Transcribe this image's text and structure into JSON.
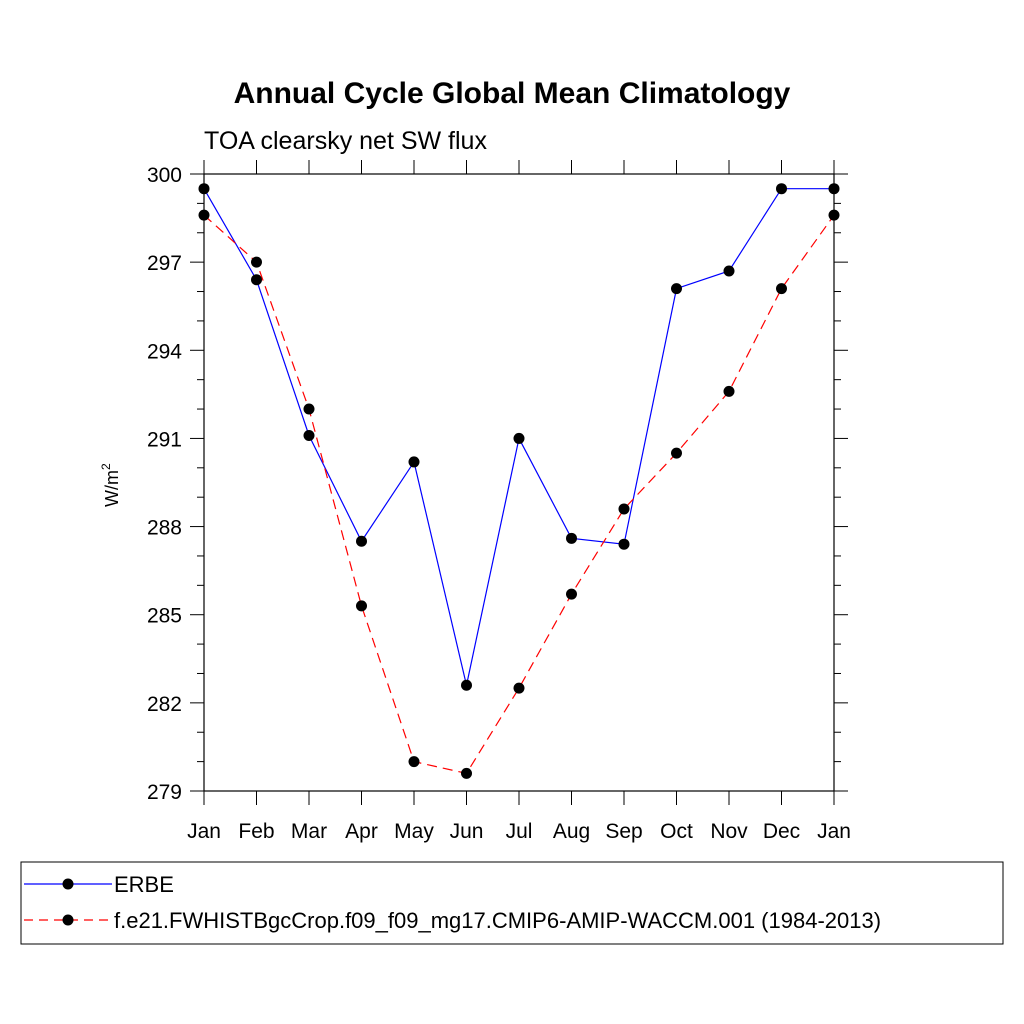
{
  "chart_data": {
    "type": "line",
    "title": "Annual Cycle Global Mean Climatology",
    "subtitle": "TOA clearsky net SW flux",
    "ylabel": "W/m",
    "ylabel_superscript": "2",
    "xlabel": "",
    "categories": [
      "Jan",
      "Feb",
      "Mar",
      "Apr",
      "May",
      "Jun",
      "Jul",
      "Aug",
      "Sep",
      "Oct",
      "Nov",
      "Dec",
      "Jan"
    ],
    "ylim": [
      279,
      300
    ],
    "yticks": [
      279,
      282,
      285,
      288,
      291,
      294,
      297,
      300
    ],
    "grid": false,
    "legend_position": "bottom",
    "series": [
      {
        "name": "ERBE",
        "color": "#0000ff",
        "dash": "solid",
        "marker": "circle",
        "values": [
          299.5,
          296.4,
          291.1,
          287.5,
          290.2,
          282.6,
          291.0,
          287.6,
          287.4,
          296.1,
          296.7,
          299.5,
          299.5
        ]
      },
      {
        "name": "f.e21.FWHISTBgcCrop.f09_f09_mg17.CMIP6-AMIP-WACCM.001 (1984-2013)",
        "color": "#ff0000",
        "dash": "dashed",
        "marker": "circle",
        "values": [
          298.6,
          297.0,
          292.0,
          285.3,
          280.0,
          279.6,
          282.5,
          285.7,
          288.6,
          290.5,
          292.6,
          296.1,
          298.6
        ]
      }
    ]
  }
}
